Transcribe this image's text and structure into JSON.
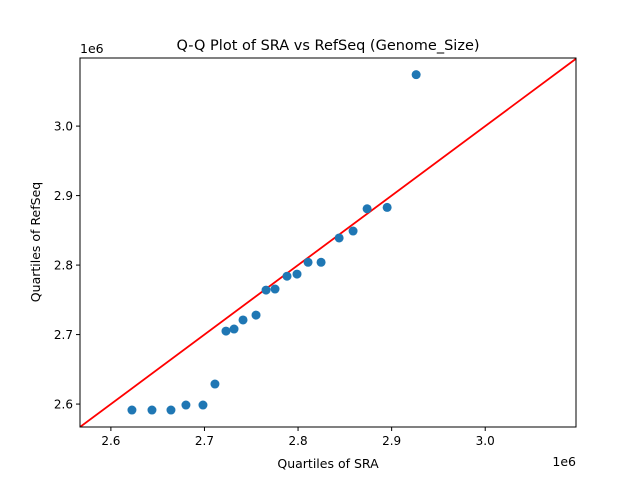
{
  "chart_data": {
    "type": "scatter",
    "title": "Q-Q Plot of SRA vs RefSeq (Genome_Size)",
    "xlabel": "Quartiles of SRA",
    "ylabel": "Quartiles of RefSeq",
    "x_offset_label": "1e6",
    "y_offset_label": "1e6",
    "xlim": [
      2.567,
      3.097
    ],
    "ylim": [
      2.567,
      3.098
    ],
    "xticks": [
      "2.6",
      "2.7",
      "2.8",
      "2.9",
      "3.0"
    ],
    "yticks": [
      "2.6",
      "2.7",
      "2.8",
      "2.9",
      "3.0"
    ],
    "grid": false,
    "colors": {
      "points": "#1f77b4",
      "reference_line": "#ff0000"
    },
    "reference_line": "y = x",
    "points": {
      "x": [
        2.6225,
        2.6439,
        2.6642,
        2.6802,
        2.6984,
        2.7112,
        2.723,
        2.7316,
        2.7412,
        2.7551,
        2.7658,
        2.7754,
        2.7882,
        2.7989,
        2.8107,
        2.8246,
        2.8439,
        2.8588,
        2.8738,
        2.8952,
        2.9262
      ],
      "y": [
        2.5914,
        2.5914,
        2.5914,
        2.5986,
        2.5986,
        2.6288,
        2.705,
        2.708,
        2.721,
        2.728,
        2.764,
        2.7655,
        2.784,
        2.787,
        2.804,
        2.804,
        2.839,
        2.849,
        2.881,
        2.883,
        3.074
      ]
    }
  }
}
